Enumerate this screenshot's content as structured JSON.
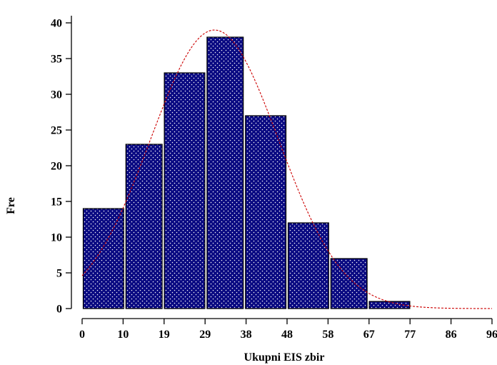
{
  "chart_data": {
    "type": "bar",
    "bins": [
      {
        "start": 0,
        "end": 10,
        "value": 14
      },
      {
        "start": 10,
        "end": 19,
        "value": 23
      },
      {
        "start": 19,
        "end": 29,
        "value": 33
      },
      {
        "start": 29,
        "end": 38,
        "value": 38
      },
      {
        "start": 38,
        "end": 48,
        "value": 27
      },
      {
        "start": 48,
        "end": 58,
        "value": 12
      },
      {
        "start": 58,
        "end": 67,
        "value": 7
      },
      {
        "start": 67,
        "end": 77,
        "value": 1
      }
    ],
    "x_ticks": [
      "0",
      "10",
      "19",
      "29",
      "38",
      "48",
      "58",
      "67",
      "77",
      "86",
      "96"
    ],
    "y_ticks": [
      "0",
      "5",
      "10",
      "15",
      "20",
      "25",
      "30",
      "35",
      "40"
    ],
    "xlim": [
      0,
      96
    ],
    "ylim": [
      0,
      41
    ],
    "xlabel": "Ukupni EIS zbir",
    "ylabel": "Fre",
    "curve": {
      "type": "normal",
      "mean": 31,
      "sd": 15,
      "peak": 39,
      "x_end": 96,
      "color": "#cc0000",
      "style": "dashed"
    },
    "colors": {
      "bar_fill": "#0a0a82",
      "bar_stroke": "#000000",
      "dot": "#ffffff",
      "axis": "#000000"
    },
    "grid": false
  }
}
